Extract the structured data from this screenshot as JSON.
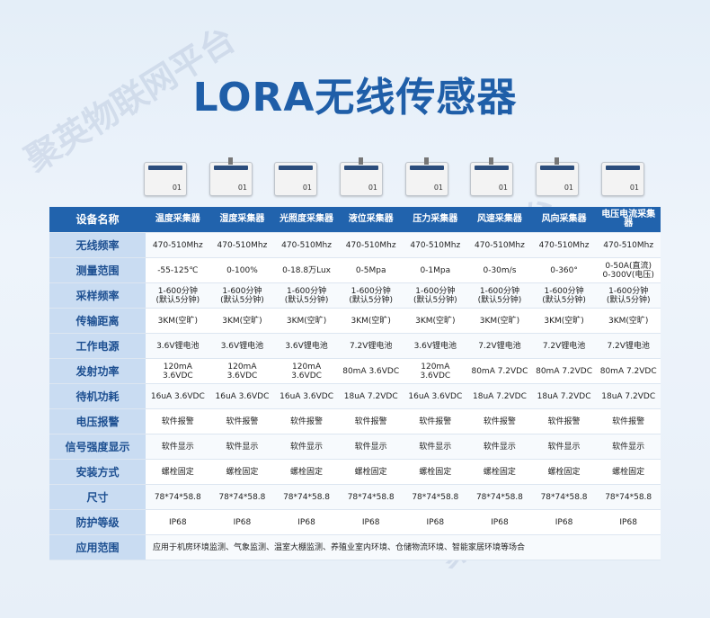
{
  "title": "LORA无线传感器",
  "watermark": "聚英物联网平台",
  "table": {
    "header": [
      "设备名称",
      "温度采集器",
      "湿度采集器",
      "光照度采集器",
      "液位采集器",
      "压力采集器",
      "风速采集器",
      "风向采集器",
      "电压电流采集器"
    ],
    "rows": [
      {
        "label": "无线频率",
        "cells": [
          "470-510Mhz",
          "470-510Mhz",
          "470-510Mhz",
          "470-510Mhz",
          "470-510Mhz",
          "470-510Mhz",
          "470-510Mhz",
          "470-510Mhz"
        ]
      },
      {
        "label": "测量范围",
        "cells": [
          "-55-125℃",
          "0-100%",
          "0-18.8万Lux",
          "0-5Mpa",
          "0-1Mpa",
          "0-30m/s",
          "0-360°",
          "0-50A(直流)\n0-300V(电压)"
        ]
      },
      {
        "label": "采样频率",
        "cells": [
          "1-600分钟\n(默认5分钟)",
          "1-600分钟\n(默认5分钟)",
          "1-600分钟\n(默认5分钟)",
          "1-600分钟\n(默认5分钟)",
          "1-600分钟\n(默认5分钟)",
          "1-600分钟\n(默认5分钟)",
          "1-600分钟\n(默认5分钟)",
          "1-600分钟\n(默认5分钟)"
        ]
      },
      {
        "label": "传输距离",
        "cells": [
          "3KM(空旷)",
          "3KM(空旷)",
          "3KM(空旷)",
          "3KM(空旷)",
          "3KM(空旷)",
          "3KM(空旷)",
          "3KM(空旷)",
          "3KM(空旷)"
        ]
      },
      {
        "label": "工作电源",
        "cells": [
          "3.6V锂电池",
          "3.6V锂电池",
          "3.6V锂电池",
          "7.2V锂电池",
          "3.6V锂电池",
          "7.2V锂电池",
          "7.2V锂电池",
          "7.2V锂电池"
        ]
      },
      {
        "label": "发射功率",
        "cells": [
          "120mA 3.6VDC",
          "120mA 3.6VDC",
          "120mA 3.6VDC",
          "80mA 3.6VDC",
          "120mA 3.6VDC",
          "80mA 7.2VDC",
          "80mA 7.2VDC",
          "80mA 7.2VDC"
        ]
      },
      {
        "label": "待机功耗",
        "cells": [
          "16uA 3.6VDC",
          "16uA 3.6VDC",
          "16uA 3.6VDC",
          "18uA 7.2VDC",
          "16uA 3.6VDC",
          "18uA 7.2VDC",
          "18uA 7.2VDC",
          "18uA 7.2VDC"
        ]
      },
      {
        "label": "电压报警",
        "cells": [
          "软件报警",
          "软件报警",
          "软件报警",
          "软件报警",
          "软件报警",
          "软件报警",
          "软件报警",
          "软件报警"
        ]
      },
      {
        "label": "信号强度显示",
        "cells": [
          "软件显示",
          "软件显示",
          "软件显示",
          "软件显示",
          "软件显示",
          "软件显示",
          "软件显示",
          "软件显示"
        ]
      },
      {
        "label": "安装方式",
        "cells": [
          "螺栓固定",
          "螺栓固定",
          "螺栓固定",
          "螺栓固定",
          "螺栓固定",
          "螺栓固定",
          "螺栓固定",
          "螺栓固定"
        ]
      },
      {
        "label": "尺寸",
        "cells": [
          "78*74*58.8",
          "78*74*58.8",
          "78*74*58.8",
          "78*74*58.8",
          "78*74*58.8",
          "78*74*58.8",
          "78*74*58.8",
          "78*74*58.8"
        ]
      },
      {
        "label": "防护等级",
        "cells": [
          "IP68",
          "IP68",
          "IP68",
          "IP68",
          "IP68",
          "IP68",
          "IP68",
          "IP68"
        ]
      }
    ],
    "application": {
      "label": "应用范围",
      "text": "应用于机房环境监测、气象监测、温室大棚监测、养殖业室内环境、仓储物流环境、智能家居环境等场合"
    }
  }
}
